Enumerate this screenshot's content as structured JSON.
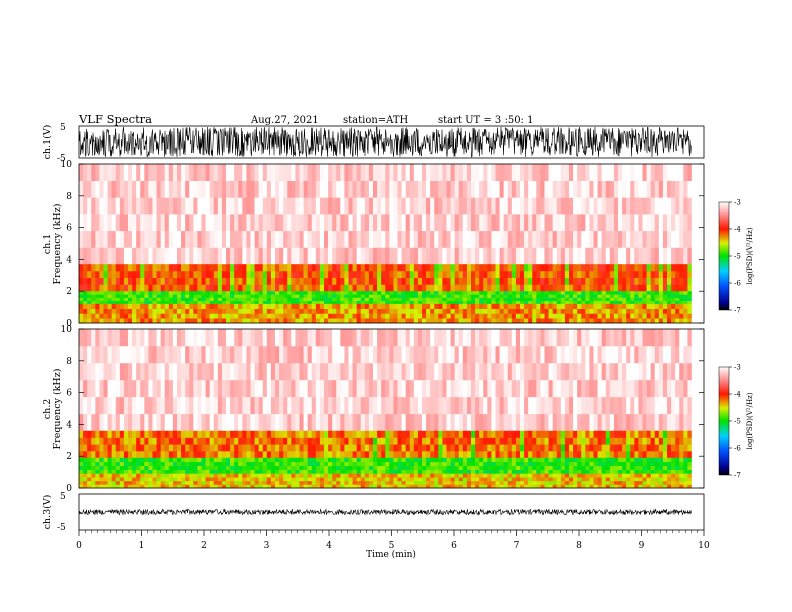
{
  "header": {
    "title": "VLF Spectra",
    "date": "Aug.27, 2021",
    "station": "station=ATH",
    "start": "start UT = 3 :50: 1"
  },
  "chart_data": [
    {
      "type": "line",
      "ylabel": "ch.1(V)",
      "ylim": [
        -5,
        5
      ],
      "yticks": [
        "5",
        "-5"
      ],
      "xlim": [
        0,
        10
      ]
    },
    {
      "type": "heatmap",
      "ylabel_top": "ch.1",
      "ylabel": "Frequency (kHz)",
      "ylim": [
        0,
        10
      ],
      "yticks": [
        "10",
        "8",
        "6",
        "4",
        "2",
        "0"
      ],
      "xlim": [
        0,
        10
      ],
      "data_end_min": 9.8,
      "colorbar": {
        "label": "log(PSD)(V²/Hz)",
        "ticks": [
          "-3",
          "-4",
          "-5",
          "-6",
          "-7"
        ],
        "range": [
          -7,
          -3
        ]
      },
      "bands": [
        {
          "from_khz": 3.7,
          "to_khz": 10,
          "level": -3.2
        },
        {
          "from_khz": 2.0,
          "to_khz": 3.7,
          "level": -4.1
        },
        {
          "from_khz": 1.2,
          "to_khz": 2.0,
          "level": -4.9
        },
        {
          "from_khz": 0,
          "to_khz": 1.2,
          "level": -4.3
        }
      ]
    },
    {
      "type": "heatmap",
      "ylabel_top": "ch.2",
      "ylabel": "Frequency (kHz)",
      "ylim": [
        0,
        10
      ],
      "yticks": [
        "10",
        "8",
        "6",
        "4",
        "2",
        "0"
      ],
      "xlim": [
        0,
        10
      ],
      "data_end_min": 9.8,
      "colorbar": {
        "label": "log(PSD)(V²/Hz)",
        "ticks": [
          "-3",
          "-4",
          "-5",
          "-6",
          "-7"
        ],
        "range": [
          -7,
          -3
        ]
      },
      "bands": [
        {
          "from_khz": 3.6,
          "to_khz": 10,
          "level": -3.2
        },
        {
          "from_khz": 1.9,
          "to_khz": 3.6,
          "level": -4.2
        },
        {
          "from_khz": 0.9,
          "to_khz": 1.9,
          "level": -4.9
        },
        {
          "from_khz": 0,
          "to_khz": 0.9,
          "level": -4.4
        }
      ]
    },
    {
      "type": "line",
      "ylabel": "ch.3(V)",
      "ylim": [
        -5,
        5
      ],
      "yticks": [
        "5",
        "-5"
      ],
      "xlim": [
        0,
        10
      ],
      "xlabel": "Time (min)",
      "xticks": [
        "0",
        "1",
        "2",
        "3",
        "4",
        "5",
        "6",
        "7",
        "8",
        "9",
        "10"
      ]
    }
  ]
}
